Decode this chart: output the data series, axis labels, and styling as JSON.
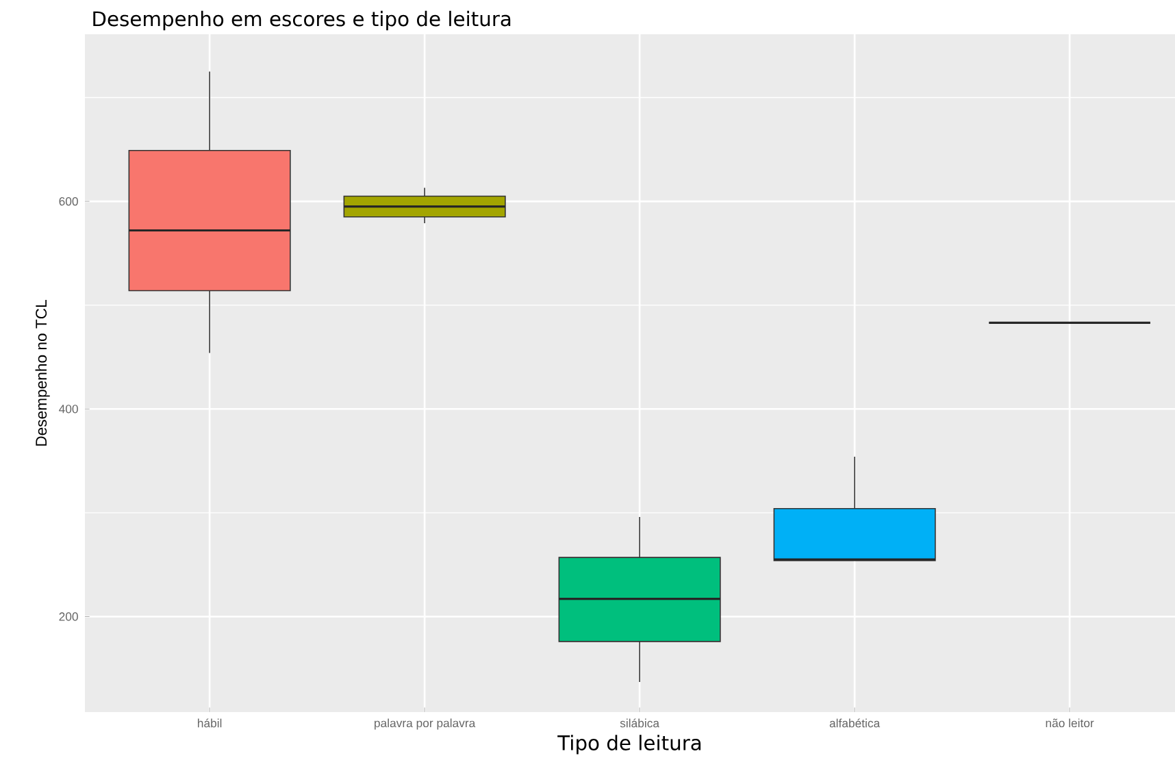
{
  "chart_data": {
    "type": "box",
    "title": "Desempenho em escores e tipo de leitura",
    "xlabel": "Tipo de leitura",
    "ylabel": "Desempenho no TCL",
    "categories": [
      "hábil",
      "palavra por palavra",
      "silábica",
      "alfabética",
      "não leitor"
    ],
    "colors": [
      "#f8766d",
      "#a3a500",
      "#00bf7d",
      "#00b0f6",
      "#333333"
    ],
    "boxes": [
      {
        "low": 454,
        "q1": 514,
        "median": 572,
        "q3": 649,
        "high": 725
      },
      {
        "low": 579,
        "q1": 585,
        "median": 595,
        "q3": 605,
        "high": 613
      },
      {
        "low": 137,
        "q1": 176,
        "median": 217,
        "q3": 257,
        "high": 296
      },
      {
        "low": 254,
        "q1": 254,
        "median": 255,
        "q3": 304,
        "high": 354
      },
      {
        "low": 483,
        "q1": 483,
        "median": 483,
        "q3": 483,
        "high": 483
      }
    ],
    "ylim": [
      108,
      761
    ],
    "yticks": [
      200,
      {
        "value": 300,
        "label": null
      },
      400,
      {
        "value": 500,
        "label": null
      },
      600,
      {
        "value": 700,
        "label": null
      }
    ],
    "grid": true
  }
}
